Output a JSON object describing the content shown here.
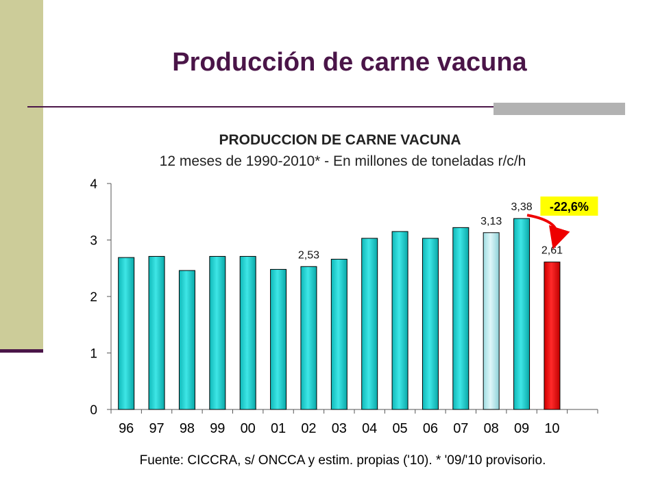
{
  "slide": {
    "title": "Producción de carne vacuna",
    "source_note": "Fuente: CICCRA, s/ ONCCA y estim. propias ('10). * '09/'10 provisorio."
  },
  "colors": {
    "sidebar": "#cccc99",
    "title": "#4a1548",
    "bar": "#1fcfcf",
    "bar_highlight": "#b0eaef",
    "bar_latest": "#ee0000",
    "callout_bg": "#ffff00"
  },
  "chart_data": {
    "type": "bar",
    "title": "PRODUCCION DE CARNE VACUNA",
    "subtitle": "12 meses de 1990-2010* - En millones de toneladas r/c/h",
    "categories": [
      "96",
      "97",
      "98",
      "99",
      "00",
      "01",
      "02",
      "03",
      "04",
      "05",
      "06",
      "07",
      "08",
      "09",
      "10"
    ],
    "values": [
      2.69,
      2.71,
      2.46,
      2.71,
      2.71,
      2.48,
      2.53,
      2.66,
      3.03,
      3.15,
      3.03,
      3.22,
      3.13,
      3.38,
      2.61
    ],
    "data_labels": {
      "6": "2,53",
      "12": "3,13",
      "13": "3,38",
      "14": "2,61"
    },
    "highlight": {
      "12": "bar_highlight",
      "14": "bar_latest"
    },
    "y_ticks": [
      "0",
      "1",
      "2",
      "3",
      "4"
    ],
    "ylim": [
      0,
      4
    ],
    "grid": false,
    "legend": "none",
    "annotation": {
      "text": "-22,6%",
      "from_index": 13,
      "to_index": 14
    }
  }
}
